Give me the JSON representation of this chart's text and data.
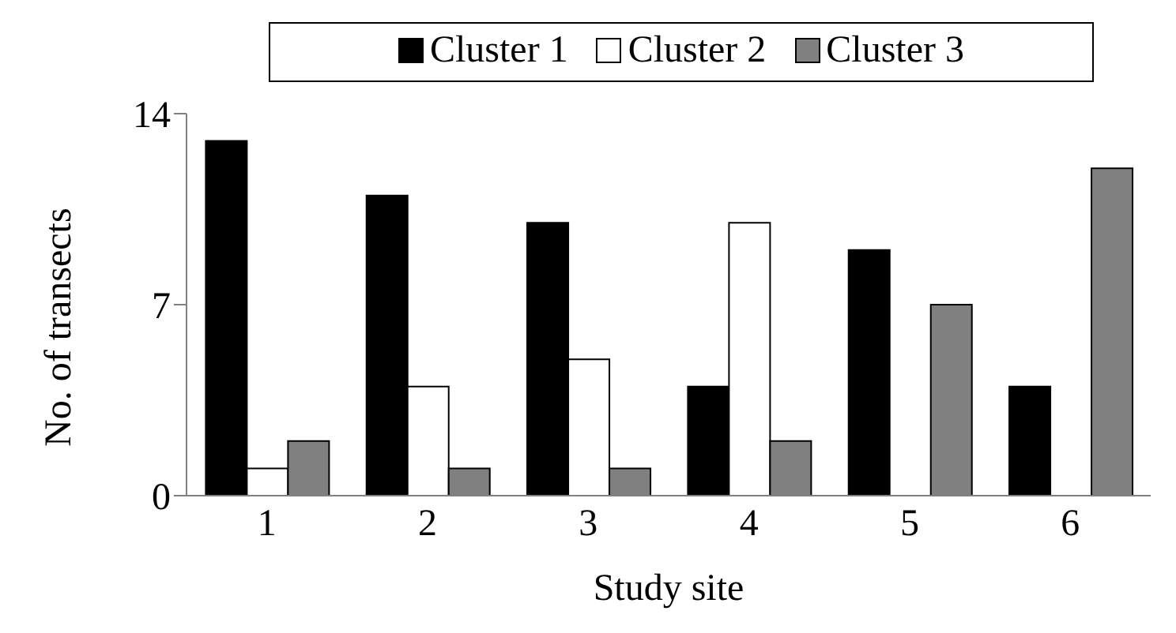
{
  "chart_data": {
    "type": "bar",
    "xlabel": "Study site",
    "ylabel": "No. of transects",
    "categories": [
      "1",
      "2",
      "3",
      "4",
      "5",
      "6"
    ],
    "series": [
      {
        "name": "Cluster 1",
        "color": "#000000",
        "values": [
          13,
          11,
          10,
          4,
          9,
          4
        ]
      },
      {
        "name": "Cluster 2",
        "color": "#ffffff",
        "values": [
          1,
          4,
          5,
          10,
          0,
          0
        ]
      },
      {
        "name": "Cluster 3",
        "color": "#808080",
        "values": [
          2,
          1,
          1,
          2,
          7,
          12
        ]
      }
    ],
    "ylim": [
      0,
      14
    ],
    "yticks": [
      0,
      7,
      14
    ],
    "grid": false,
    "legend": "top"
  }
}
